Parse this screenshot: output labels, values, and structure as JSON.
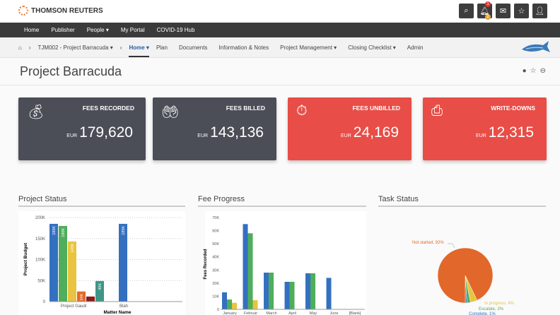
{
  "header": {
    "brand": "THOMSON REUTERS",
    "notif_count": "1",
    "notif_count2": "2"
  },
  "nav": [
    "Home",
    "Publisher",
    "People ▾",
    "My Portal",
    "COVID-19 Hub"
  ],
  "subnav": {
    "breadcrumb": "TJM002 - Project Barracuda ▾",
    "items": [
      "Home ▾",
      "Plan",
      "Documents",
      "Information & Notes",
      "Project Management ▾",
      "Closing Checklist ▾",
      "Admin"
    ]
  },
  "page": {
    "title": "Project Barracuda"
  },
  "cards": [
    {
      "label": "FEES RECORDED",
      "currency": "EUR",
      "value": "179,620",
      "icon": "money-bag-icon",
      "color": "#4b4e57"
    },
    {
      "label": "FEES BILLED",
      "currency": "EUR",
      "value": "143,136",
      "icon": "hand-money-icon",
      "color": "#4b4e57"
    },
    {
      "label": "FEES UNBILLED",
      "currency": "EUR",
      "value": "24,169",
      "icon": "stopwatch-icon",
      "color": "#e84d47"
    },
    {
      "label": "WRITE-DOWNS",
      "currency": "EUR",
      "value": "12,315",
      "icon": "bill-down-icon",
      "color": "#e84d47"
    }
  ],
  "panels": {
    "status": "Project Status",
    "fee": "Fee Progress",
    "task": "Task Status"
  },
  "chart_data": [
    {
      "type": "bar",
      "title": "Project Status",
      "xlabel": "Matter Name",
      "ylabel": "Project Budget",
      "ylim": [
        0,
        200000
      ],
      "yticks": [
        "0",
        "50K",
        "100K",
        "150K",
        "200K"
      ],
      "categories": [
        "Project Gaudi",
        "Blah"
      ],
      "groups": [
        {
          "values": [
            185000,
            180000,
            143000,
            24000,
            12000,
            49000
          ],
          "labels": [
            "185K",
            "180K",
            "143K",
            "24K",
            "",
            "49K"
          ]
        },
        {
          "values": [
            185000
          ],
          "labels": [
            "185K"
          ]
        }
      ],
      "colors": [
        "#3470c0",
        "#4fad5b",
        "#e8c440",
        "#e2672a",
        "#8b1a1a",
        "#3e9688"
      ]
    },
    {
      "type": "bar",
      "title": "Fee Progress",
      "ylabel": "Fees Recorded",
      "ylim": [
        0,
        70000
      ],
      "yticks": [
        "0",
        "10K",
        "20K",
        "30K",
        "40K",
        "50K",
        "60K",
        "70K"
      ],
      "categories": [
        "January",
        "Februar",
        "March",
        "April",
        "May",
        "June",
        "[Blank]"
      ],
      "series": [
        {
          "values": [
            13000,
            65000,
            28000,
            21000,
            27500,
            24000,
            0
          ],
          "color": "#3470c0"
        },
        {
          "values": [
            7500,
            58000,
            28000,
            21000,
            27500,
            0,
            0
          ],
          "color": "#4fad5b"
        },
        {
          "values": [
            5000,
            7000,
            0,
            0,
            0,
            0,
            0
          ],
          "color": "#e8c440"
        }
      ]
    },
    {
      "type": "pie",
      "title": "Task Status",
      "slices": [
        {
          "label": "Complete, 1%",
          "value": 1,
          "color": "#3470c0"
        },
        {
          "label": "Escalate, 2%",
          "value": 2,
          "color": "#4fad5b"
        },
        {
          "label": "In progress, 4%",
          "value": 4,
          "color": "#e8c440"
        },
        {
          "label": "Not started, 92%",
          "value": 92,
          "color": "#e2672a"
        }
      ]
    }
  ]
}
